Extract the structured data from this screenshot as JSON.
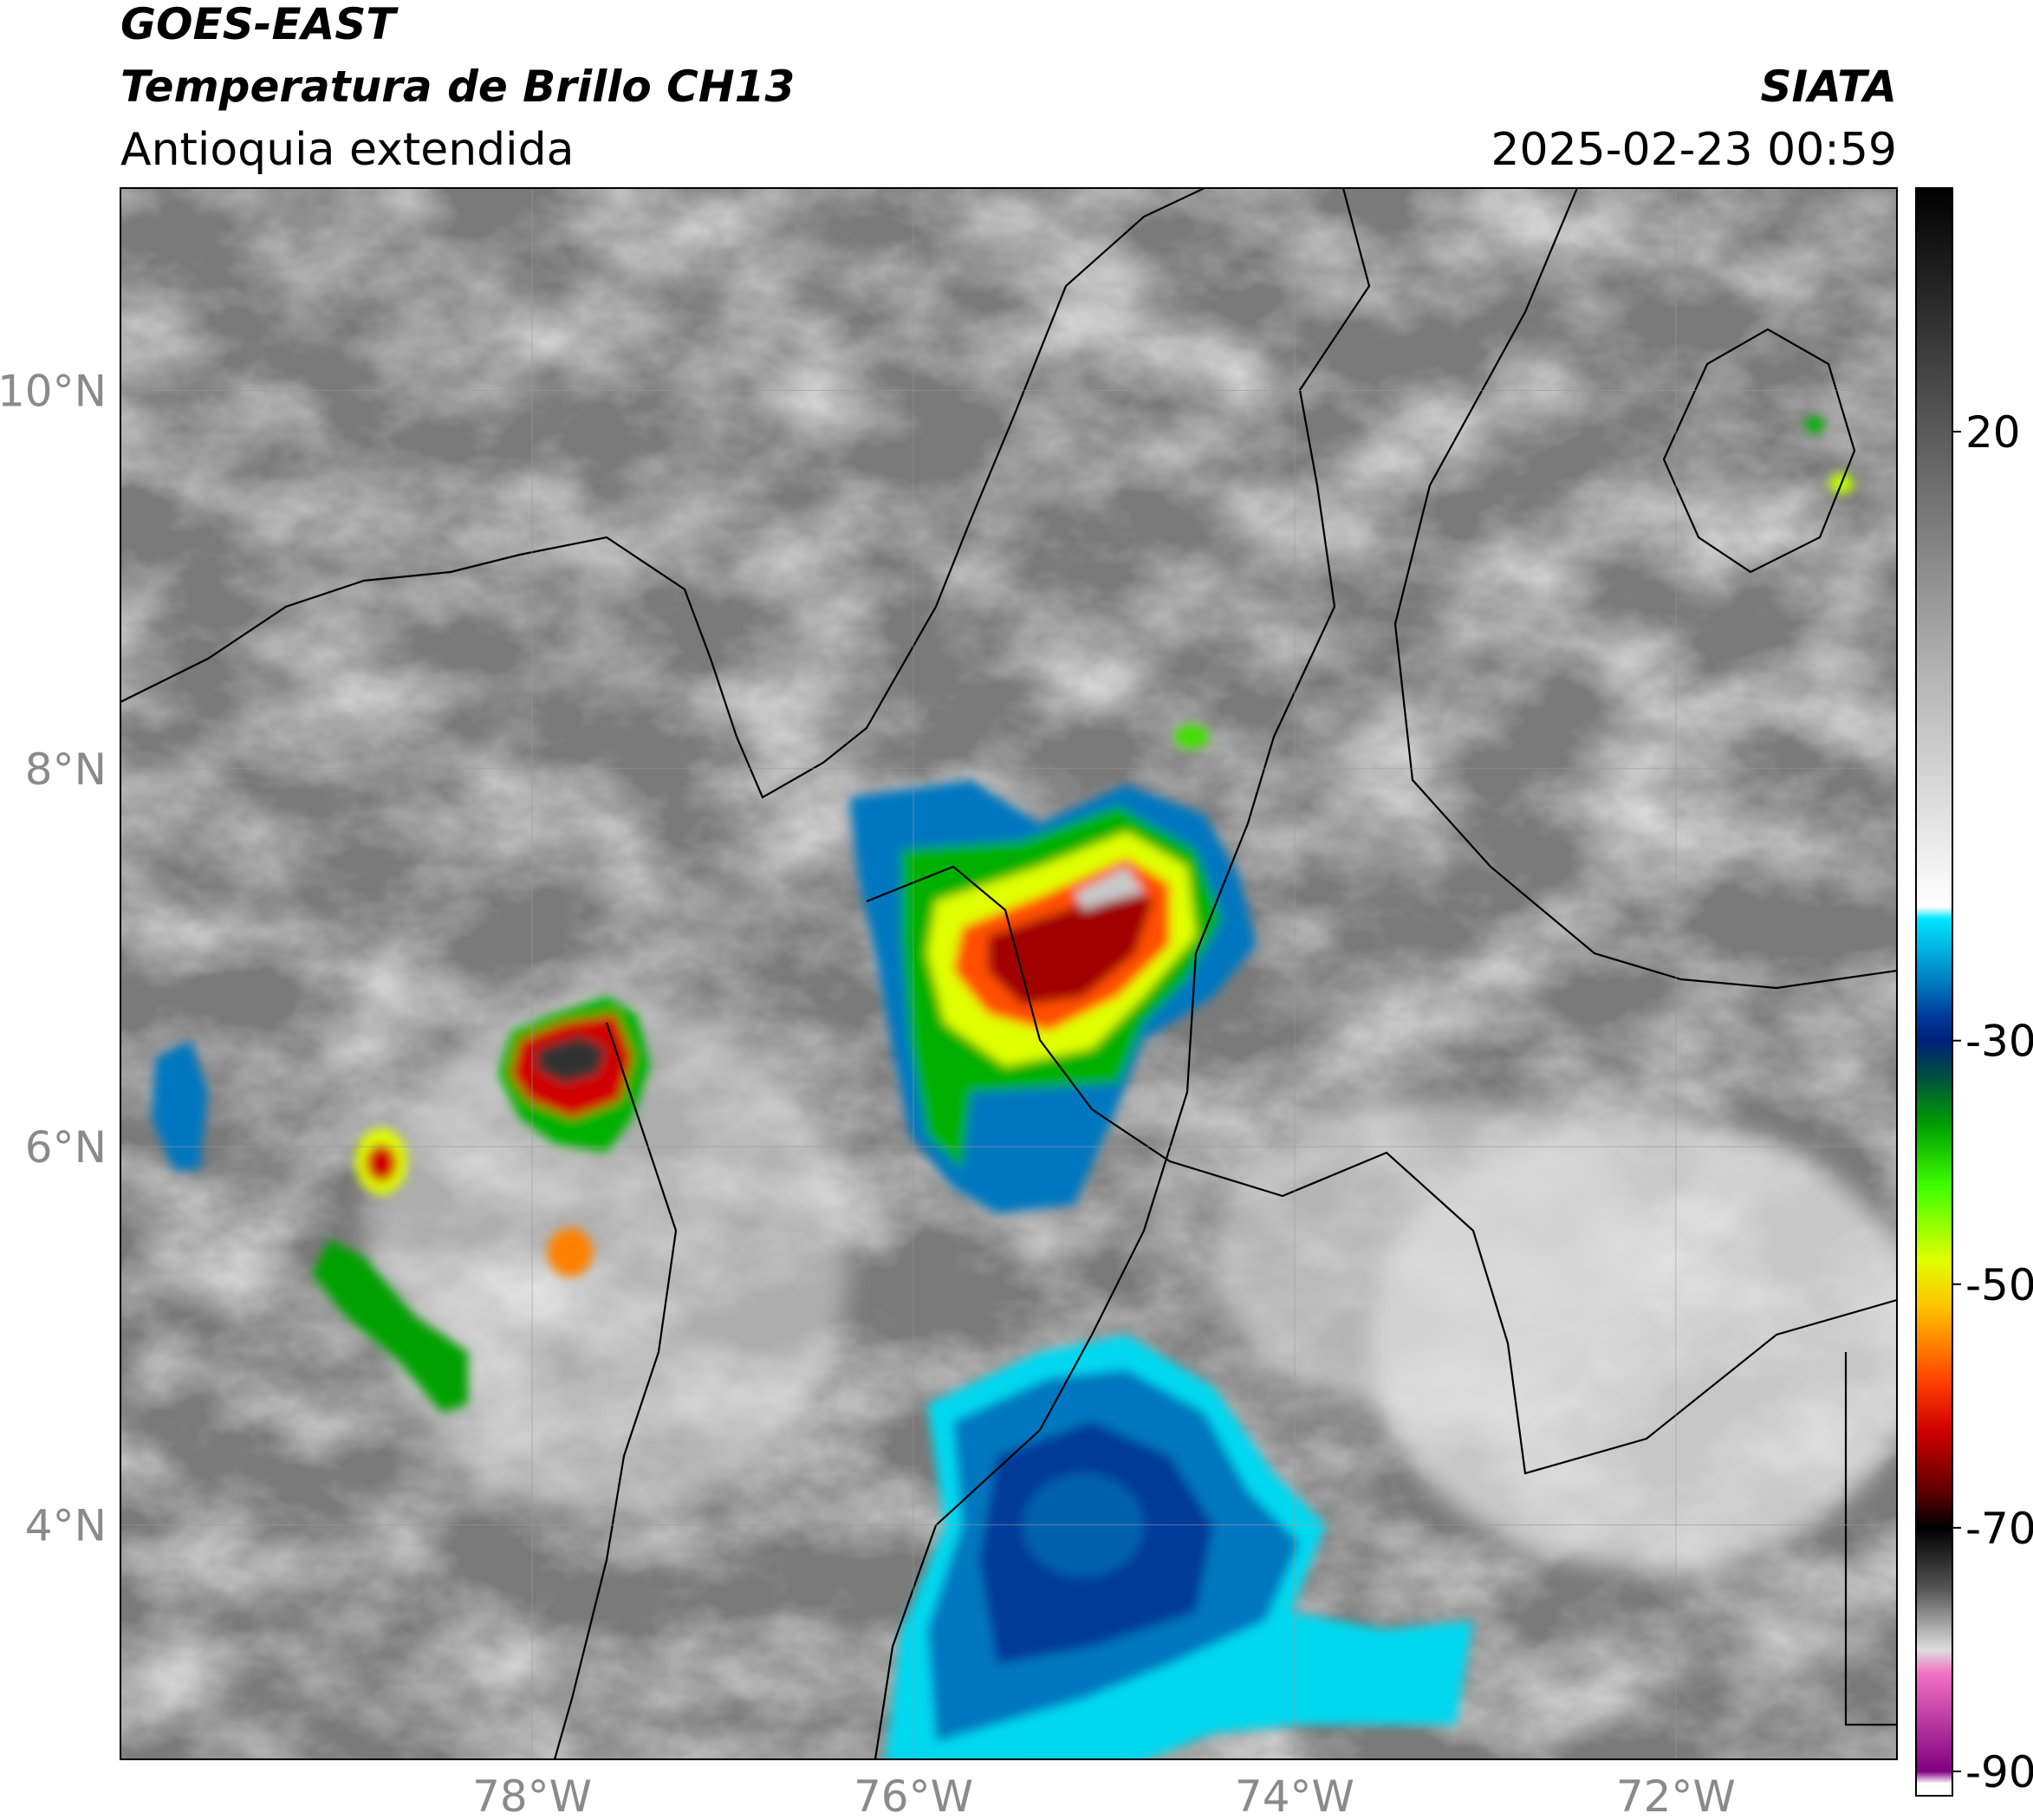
{
  "header": {
    "title": "GOES-EAST",
    "subtitle": "Temperatura de Brillo CH13",
    "region": "Antioquia extendida",
    "source": "SIATA",
    "datetime": "2025-02-23 00:59"
  },
  "chart_data": {
    "type": "map",
    "xlim": [
      -80.16,
      -70.84
    ],
    "ylim": [
      2.76,
      11.07
    ],
    "xticks": [
      {
        "value": -78,
        "label": "78°W"
      },
      {
        "value": -76,
        "label": "76°W"
      },
      {
        "value": -74,
        "label": "74°W"
      },
      {
        "value": -72,
        "label": "72°W"
      }
    ],
    "yticks": [
      {
        "value": 4,
        "label": "4°N"
      },
      {
        "value": 6,
        "label": "6°N"
      },
      {
        "value": 8,
        "label": "8°N"
      },
      {
        "value": 10,
        "label": "10°N"
      }
    ],
    "grid": true,
    "colorbar": {
      "lim": [
        -92,
        40
      ],
      "ticks": [
        -90,
        -70,
        -50,
        -30,
        20
      ],
      "colormap": [
        {
          "value": 40,
          "color": "#000000"
        },
        {
          "value": 20,
          "color": "#5a5a5a"
        },
        {
          "value": 0,
          "color": "#b4b4b4"
        },
        {
          "value": -19,
          "color": "#ffffff"
        },
        {
          "value": -20,
          "color": "#00e5ff"
        },
        {
          "value": -25,
          "color": "#0080c0"
        },
        {
          "value": -28,
          "color": "#003a9a"
        },
        {
          "value": -30,
          "color": "#00207a"
        },
        {
          "value": -33,
          "color": "#005040"
        },
        {
          "value": -37,
          "color": "#00a000"
        },
        {
          "value": -42,
          "color": "#40ff00"
        },
        {
          "value": -48,
          "color": "#e0ff00"
        },
        {
          "value": -52,
          "color": "#ffc000"
        },
        {
          "value": -58,
          "color": "#ff4000"
        },
        {
          "value": -62,
          "color": "#d00000"
        },
        {
          "value": -67,
          "color": "#600000"
        },
        {
          "value": -70,
          "color": "#000000"
        },
        {
          "value": -75,
          "color": "#555555"
        },
        {
          "value": -80,
          "color": "#dddddd"
        },
        {
          "value": -82,
          "color": "#f070c0"
        },
        {
          "value": -90,
          "color": "#800080"
        },
        {
          "value": -91,
          "color": "#ffffff"
        },
        {
          "value": -92,
          "color": "#ffffff"
        }
      ]
    }
  }
}
